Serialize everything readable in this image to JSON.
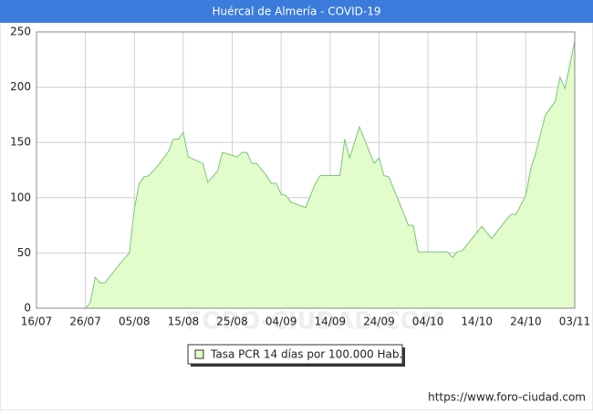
{
  "chart_data": {
    "type": "area",
    "title": "Huércal de Almería - COVID-19",
    "x": [
      "26/07",
      "27/07",
      "28/07",
      "29/07",
      "30/07",
      "02/08",
      "04/08",
      "05/08",
      "06/08",
      "07/08",
      "08/08",
      "10/08",
      "12/08",
      "13/08",
      "14/08",
      "15/08",
      "16/08",
      "19/08",
      "20/08",
      "22/08",
      "23/08",
      "26/08",
      "27/08",
      "28/08",
      "29/08",
      "30/08",
      "01/09",
      "02/09",
      "03/09",
      "04/09",
      "05/09",
      "06/09",
      "09/09",
      "11/09",
      "12/09",
      "16/09",
      "17/09",
      "18/09",
      "20/09",
      "21/09",
      "23/09",
      "24/09",
      "25/09",
      "26/09",
      "27/09",
      "30/09",
      "01/10",
      "02/10",
      "08/10",
      "09/10",
      "10/10",
      "11/10",
      "15/10",
      "17/10",
      "20/10",
      "21/10",
      "22/10",
      "24/10",
      "25/10",
      "26/10",
      "28/10",
      "30/10",
      "31/10",
      "01/11",
      "03/11"
    ],
    "series": [
      {
        "name": "Tasa PCR 14 días por 100.000 Hab.",
        "color": "#7cc47c",
        "fill": "#e2fccb",
        "values": [
          0,
          5,
          28,
          23,
          23,
          40,
          50,
          90,
          113,
          119,
          120,
          130,
          142,
          153,
          153,
          159,
          137,
          131,
          114,
          124,
          141,
          137,
          141,
          141,
          131,
          131,
          120,
          113,
          113,
          103,
          102,
          96,
          91,
          113,
          120,
          120,
          153,
          136,
          164,
          153,
          131,
          136,
          120,
          119,
          108,
          75,
          75,
          51,
          51,
          46,
          51,
          52,
          74,
          63,
          80,
          85,
          85,
          102,
          126,
          140,
          175,
          187,
          209,
          199,
          242
        ]
      }
    ],
    "xlim": [
      "16/07",
      "03/11"
    ],
    "xticks": [
      "16/07",
      "26/07",
      "05/08",
      "15/08",
      "25/08",
      "04/09",
      "14/09",
      "24/09",
      "04/10",
      "14/10",
      "24/10",
      "03/11"
    ],
    "ylim": [
      0,
      250
    ],
    "yticks": [
      0,
      50,
      100,
      150,
      200,
      250
    ],
    "grid": true,
    "watermark": "FORO-CIUDAD.COM",
    "source": "https://www.foro-ciudad.com"
  }
}
